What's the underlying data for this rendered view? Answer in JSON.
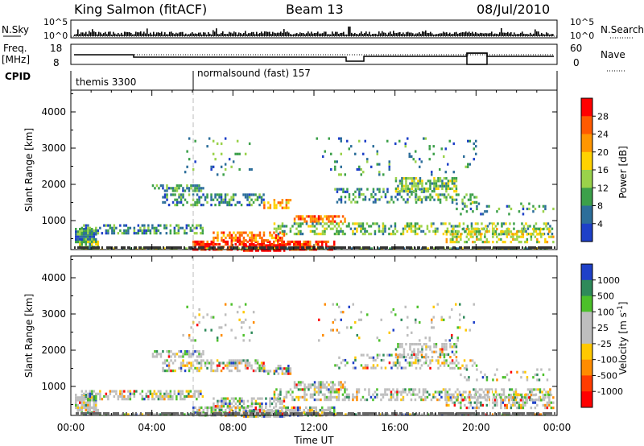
{
  "header": {
    "title": "King Salmon (fitACF)",
    "beam": "Beam 13",
    "date": "08/Jul/2010"
  },
  "top_panel": {
    "nsky_label": "N.Sky",
    "nsearch_label": "N.Search",
    "left_ticks": [
      "10^5",
      "10^0"
    ],
    "right_ticks": [
      "10^5",
      "10^0"
    ]
  },
  "freq_panel": {
    "label_line1": "Freq.",
    "label_line2": "[MHz]",
    "left_ticks": [
      "18",
      "8"
    ],
    "right_ticks": [
      "60",
      "0"
    ],
    "nave_label": "Nave"
  },
  "cpid_panel": {
    "label": "CPID",
    "modes": [
      "themis 3300",
      "normalsound (fast) 157"
    ]
  },
  "chart_data": [
    {
      "type": "heatmap",
      "name": "power",
      "ylabel": "Slant Range [km]",
      "yticks": [
        "4000",
        "3000",
        "2000",
        "1000"
      ],
      "ylim": [
        200,
        4600
      ],
      "xlim": [
        0,
        24
      ],
      "colorbar_label": "Power [dB]",
      "colorbar_ticks": [
        "28",
        "24",
        "20",
        "16",
        "12",
        "8",
        "4"
      ],
      "colorbar_colors": [
        "#ff0000",
        "#ff5a00",
        "#ff9600",
        "#ffd200",
        "#9ad24a",
        "#3ca04a",
        "#2c6e9a",
        "#1e40c8"
      ]
    },
    {
      "type": "heatmap",
      "name": "velocity",
      "ylabel": "Slant Range [km]",
      "yticks": [
        "4000",
        "3000",
        "2000",
        "1000"
      ],
      "ylim": [
        200,
        4600
      ],
      "xlim": [
        0,
        24
      ],
      "colorbar_label": "Velocity [m s^-1]",
      "colorbar_ticks": [
        "1000",
        "500",
        "100",
        "25",
        "-25",
        "-100",
        "-500",
        "-1000"
      ],
      "colorbar_colors": [
        "#1e40c8",
        "#2e8a5a",
        "#4cc02a",
        "#bebebe",
        "#bebebe",
        "#ffc800",
        "#ff8c00",
        "#ff3c00",
        "#ff0000"
      ],
      "xticks": [
        "00:00",
        "04:00",
        "08:00",
        "12:00",
        "16:00",
        "20:00",
        "00:00"
      ],
      "xlabel": "Time UT"
    }
  ]
}
